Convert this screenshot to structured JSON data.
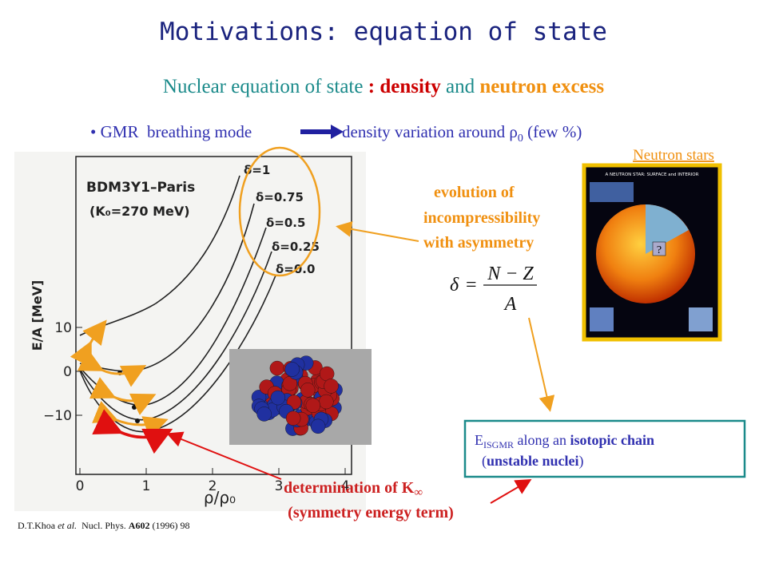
{
  "title": "Motivations: equation of state",
  "subtitle": {
    "lead": "Nuclear equation of state",
    "sep": " : ",
    "density": "density",
    "and": " and ",
    "excess": "neutron excess"
  },
  "bullet": {
    "mark": "•",
    "lead": "GMR  breathing mode",
    "text": "density variation around ",
    "rho": "ρ",
    "sub": "0",
    "tail": " (few %)"
  },
  "neutron_stars": {
    "label": "Neutron stars",
    "heading": "A NEUTRON STAR: SURFACE and INTERIOR",
    "question": "?"
  },
  "figure": {
    "name": "BDM3Y1–Paris",
    "k0": "(K₀=270 MeV)",
    "ylabel": "E/A  [MeV]",
    "xlabel": "ρ/ρ₀",
    "xticks": [
      "0",
      "1",
      "2",
      "3",
      "4"
    ],
    "yticks": [
      "10",
      "0",
      "−10"
    ],
    "curves": [
      "δ=1",
      "δ=0.75",
      "δ=0.5",
      "δ=0.25",
      "δ=0.0"
    ]
  },
  "evolution": [
    "evolution of",
    "incompressibility",
    "with asymmetry"
  ],
  "formula": {
    "lhs": "δ",
    "eq": "=",
    "num": "N − Z",
    "den": "A"
  },
  "box": {
    "e": "E",
    "sub": "ISGMR",
    "along": " along an ",
    "chain": "isotopic chain",
    "open": "(",
    "unstable": "unstable nuclei",
    "close": ")"
  },
  "determination": {
    "line1": "determination of K",
    "inf": "∞",
    "line2": "(symmetry energy term)"
  },
  "citation": {
    "author": "D.T.Khoa ",
    "etal": "et al.",
    "journal": "  Nucl. Phys. ",
    "vol": "A602",
    "rest": " (1996) 98"
  }
}
